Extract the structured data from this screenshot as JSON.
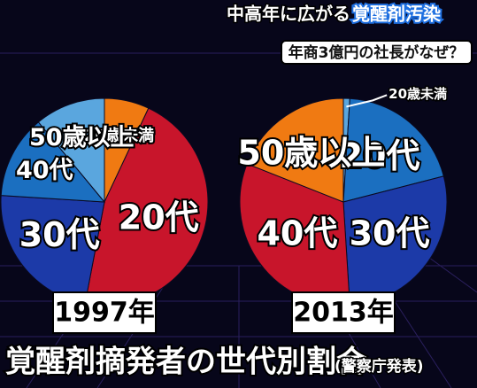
{
  "headline_1": "中高年に広がる",
  "headline_2": "覚醒剤汚染",
  "subheadline": "年商3億円の社長がなぜ？",
  "caption": "覚醒剤摘発者の世代別割合",
  "source": "(警察庁発表)",
  "chart_data": [
    {
      "type": "pie",
      "title": "1997年",
      "categories": [
        "20歳未満",
        "20代",
        "30代",
        "40代",
        "50歳以上"
      ],
      "values": [
        7,
        46,
        23,
        13,
        11
      ],
      "colors": [
        "#f07a12",
        "#c8152b",
        "#1c3aa8",
        "#1b6fc0",
        "#5aa6de"
      ]
    },
    {
      "type": "pie",
      "title": "2013年",
      "categories": [
        "20歳未満",
        "20代",
        "30代",
        "40代",
        "50歳以上"
      ],
      "values": [
        1,
        20,
        28,
        32,
        19
      ],
      "colors": [
        "#5aa6de",
        "#1b6fc0",
        "#1c3aa8",
        "#c8152b",
        "#f07a12"
      ]
    }
  ]
}
